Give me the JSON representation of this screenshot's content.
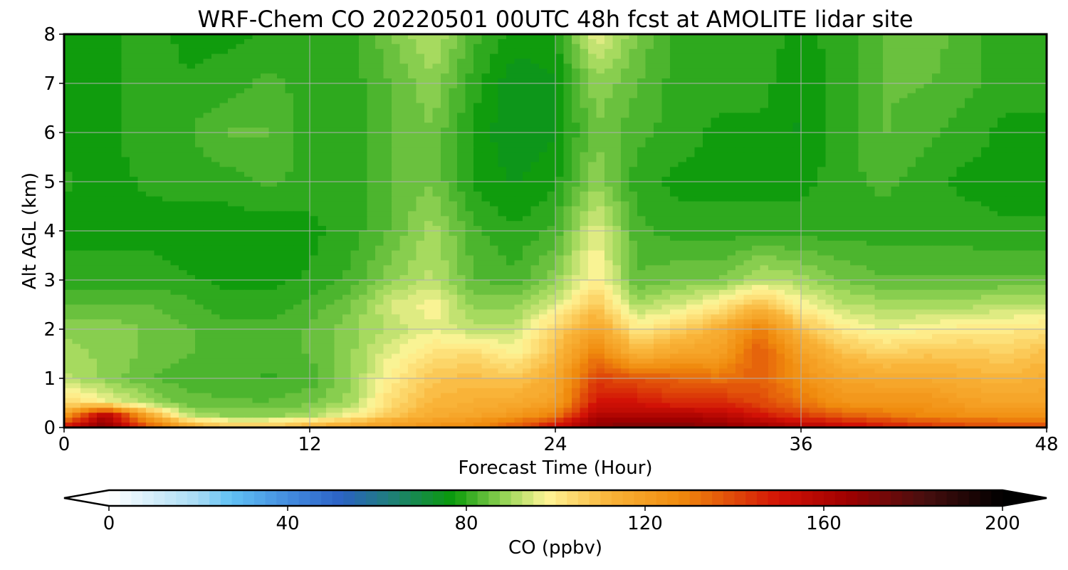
{
  "chart_data": {
    "type": "heatmap",
    "title": "WRF-Chem CO  20220501 00UTC 48h fcst at AMOLITE lidar site",
    "xlabel": "Forecast Time (Hour)",
    "ylabel": "Alt AGL (km)",
    "xlim": [
      0,
      48
    ],
    "ylim": [
      0,
      8
    ],
    "xticks": [
      "0",
      "12",
      "24",
      "36",
      "48"
    ],
    "yticks": [
      "0",
      "1",
      "2",
      "3",
      "4",
      "5",
      "6",
      "7",
      "8"
    ],
    "grid": true,
    "colorbar": {
      "label": "CO  (ppbv)",
      "range": [
        0,
        200
      ],
      "ticks": [
        "0",
        "40",
        "80",
        "120",
        "160",
        "200"
      ],
      "extend": "both",
      "colors": [
        {
          "v": 0,
          "c": "#ffffff"
        },
        {
          "v": 20,
          "c": "#a8dcf5"
        },
        {
          "v": 27,
          "c": "#62c2f5"
        },
        {
          "v": 42,
          "c": "#3f85dc"
        },
        {
          "v": 52,
          "c": "#2b62c4"
        },
        {
          "v": 63,
          "c": "#1f7e7a"
        },
        {
          "v": 77,
          "c": "#0a9a0a"
        },
        {
          "v": 90,
          "c": "#a6da5f"
        },
        {
          "v": 98,
          "c": "#fff597"
        },
        {
          "v": 112,
          "c": "#f9b439"
        },
        {
          "v": 128,
          "c": "#f08a0d"
        },
        {
          "v": 150,
          "c": "#d21206"
        },
        {
          "v": 165,
          "c": "#a00000"
        },
        {
          "v": 182,
          "c": "#4a0f0f"
        },
        {
          "v": 200,
          "c": "#000000"
        }
      ]
    },
    "x": [
      0,
      2,
      4,
      6,
      8,
      10,
      12,
      14,
      16,
      18,
      20,
      22,
      24,
      26,
      28,
      30,
      32,
      34,
      36,
      38,
      40,
      42,
      44,
      46,
      48
    ],
    "y": [
      0,
      0.25,
      0.5,
      1,
      1.5,
      2,
      2.5,
      3,
      4,
      5,
      6,
      7,
      8
    ],
    "values": [
      [
        150,
        172,
        140,
        118,
        108,
        108,
        115,
        118,
        122,
        125,
        128,
        138,
        152,
        170,
        172,
        172,
        170,
        165,
        160,
        155,
        150,
        145,
        142,
        140,
        140
      ],
      [
        120,
        160,
        118,
        92,
        88,
        88,
        90,
        98,
        108,
        115,
        118,
        122,
        130,
        160,
        160,
        160,
        158,
        150,
        142,
        136,
        132,
        128,
        126,
        125,
        125
      ],
      [
        105,
        98,
        90,
        85,
        84,
        84,
        86,
        90,
        104,
        112,
        114,
        116,
        120,
        150,
        150,
        145,
        146,
        140,
        132,
        124,
        124,
        124,
        120,
        118,
        118
      ],
      [
        92,
        88,
        84,
        82,
        82,
        81,
        82,
        88,
        100,
        108,
        110,
        108,
        116,
        142,
        138,
        135,
        132,
        136,
        125,
        118,
        116,
        116,
        114,
        112,
        115
      ],
      [
        90,
        88,
        86,
        84,
        82,
        82,
        84,
        88,
        96,
        102,
        104,
        98,
        110,
        130,
        112,
        118,
        120,
        138,
        120,
        110,
        106,
        108,
        108,
        106,
        110
      ],
      [
        88,
        88,
        86,
        84,
        82,
        82,
        84,
        88,
        92,
        96,
        92,
        92,
        106,
        118,
        100,
        106,
        114,
        130,
        110,
        100,
        96,
        98,
        100,
        100,
        102
      ],
      [
        84,
        84,
        84,
        82,
        80,
        80,
        82,
        86,
        94,
        98,
        88,
        88,
        94,
        108,
        90,
        94,
        100,
        110,
        98,
        92,
        90,
        90,
        90,
        92,
        92
      ],
      [
        80,
        80,
        80,
        79,
        78,
        78,
        79,
        82,
        88,
        92,
        84,
        82,
        88,
        100,
        84,
        86,
        86,
        92,
        90,
        86,
        84,
        84,
        84,
        84,
        84
      ],
      [
        78,
        78,
        78,
        77,
        77,
        77,
        78,
        80,
        84,
        90,
        82,
        79,
        82,
        96,
        82,
        80,
        80,
        80,
        80,
        80,
        80,
        80,
        80,
        79,
        79
      ],
      [
        79,
        78,
        79,
        80,
        80,
        82,
        80,
        80,
        84,
        86,
        78,
        76,
        78,
        88,
        80,
        78,
        78,
        78,
        78,
        80,
        82,
        80,
        78,
        78,
        78
      ],
      [
        78,
        78,
        80,
        81,
        84,
        84,
        80,
        80,
        84,
        86,
        78,
        74,
        76,
        86,
        82,
        80,
        78,
        78,
        76,
        80,
        84,
        82,
        80,
        78,
        78
      ],
      [
        78,
        78,
        80,
        79,
        80,
        82,
        80,
        80,
        84,
        88,
        80,
        74,
        76,
        88,
        84,
        80,
        80,
        80,
        76,
        80,
        84,
        84,
        82,
        80,
        80
      ],
      [
        78,
        78,
        80,
        78,
        78,
        79,
        80,
        80,
        86,
        92,
        82,
        78,
        78,
        96,
        86,
        80,
        80,
        80,
        78,
        80,
        84,
        86,
        82,
        80,
        80
      ]
    ]
  }
}
